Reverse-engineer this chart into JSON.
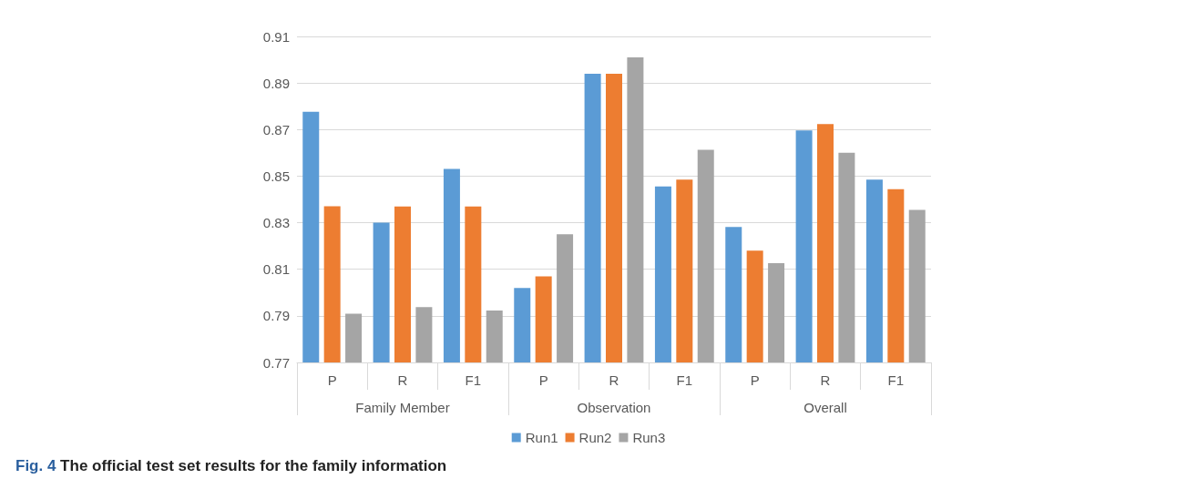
{
  "chart_data": {
    "type": "bar",
    "title": "Fig. 4 The official test set results for the family information",
    "categories": [
      "P",
      "R",
      "F1",
      "P",
      "R",
      "F1",
      "P",
      "R",
      "F1"
    ],
    "annotations": [
      "Family Member",
      "Observation",
      "Overall"
    ],
    "series": [
      {
        "name": "Run1",
        "color": "#5b9bd5",
        "values": [
          0.8776,
          0.83,
          0.8531,
          0.802,
          0.894,
          0.8456,
          0.8282,
          0.8696,
          0.8485
        ]
      },
      {
        "name": "Run2",
        "color": "#ed7d31",
        "values": [
          0.8371,
          0.837,
          0.837,
          0.807,
          0.894,
          0.8485,
          0.818,
          0.8724,
          0.8444
        ]
      },
      {
        "name": "Run3",
        "color": "#a5a5a5",
        "values": [
          0.7909,
          0.7938,
          0.7923,
          0.825,
          0.901,
          0.8613,
          0.8126,
          0.86,
          0.8355
        ]
      }
    ],
    "ylim": [
      0.77,
      0.91
    ],
    "yticks": [
      0.77,
      0.79,
      0.81,
      0.83,
      0.85,
      0.87,
      0.89,
      0.91
    ],
    "grid": "y",
    "legend": "bottom"
  }
}
